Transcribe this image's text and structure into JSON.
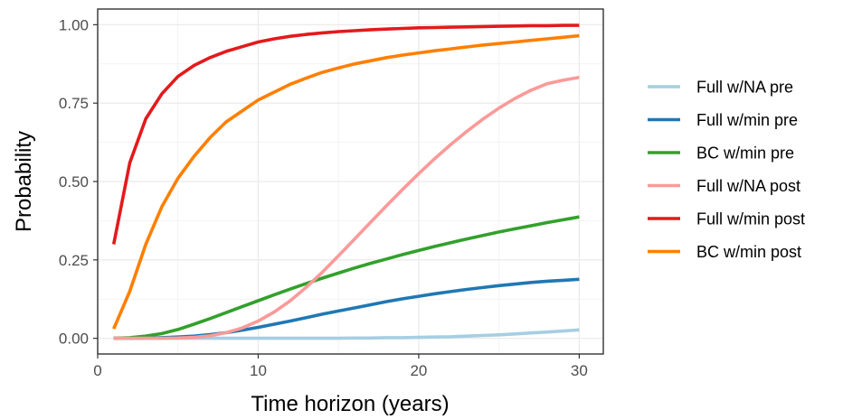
{
  "chart_data": {
    "type": "line",
    "title": "",
    "xlabel": "Time horizon (years)",
    "ylabel": "Probability",
    "xlim": [
      0,
      31.5
    ],
    "ylim": [
      -0.05,
      1.05
    ],
    "xticks": [
      0,
      10,
      20,
      30
    ],
    "xtick_labels": [
      "0",
      "10",
      "20",
      "30"
    ],
    "yticks": [
      0,
      0.25,
      0.5,
      0.75,
      1.0
    ],
    "ytick_labels": [
      "0.00",
      "0.25",
      "0.50",
      "0.75",
      "1.00"
    ],
    "grid": true,
    "legend_position": "right",
    "x": [
      1,
      2,
      3,
      4,
      5,
      6,
      7,
      8,
      9,
      10,
      11,
      12,
      13,
      14,
      15,
      16,
      17,
      18,
      19,
      20,
      21,
      22,
      23,
      24,
      25,
      26,
      27,
      28,
      29,
      30
    ],
    "series": [
      {
        "name": "Full w/NA pre",
        "color": "#a6cee3",
        "values": [
          0,
          0,
          0,
          0,
          0,
          0,
          0,
          0,
          0,
          0,
          0,
          0,
          0,
          0,
          0,
          0.001,
          0.001,
          0.002,
          0.002,
          0.003,
          0.004,
          0.005,
          0.007,
          0.009,
          0.011,
          0.014,
          0.017,
          0.02,
          0.023,
          0.027
        ]
      },
      {
        "name": "Full w/min pre",
        "color": "#1f78b4",
        "values": [
          0,
          0,
          0.001,
          0.002,
          0.004,
          0.007,
          0.012,
          0.018,
          0.026,
          0.035,
          0.045,
          0.055,
          0.066,
          0.077,
          0.087,
          0.097,
          0.107,
          0.117,
          0.126,
          0.134,
          0.142,
          0.149,
          0.156,
          0.162,
          0.168,
          0.173,
          0.178,
          0.182,
          0.185,
          0.188
        ]
      },
      {
        "name": "BC w/min pre",
        "color": "#33a02c",
        "values": [
          0,
          0.002,
          0.007,
          0.015,
          0.028,
          0.045,
          0.063,
          0.082,
          0.101,
          0.12,
          0.139,
          0.157,
          0.175,
          0.192,
          0.208,
          0.224,
          0.239,
          0.253,
          0.267,
          0.28,
          0.293,
          0.305,
          0.317,
          0.328,
          0.339,
          0.349,
          0.359,
          0.369,
          0.378,
          0.387
        ]
      },
      {
        "name": "Full w/NA post",
        "color": "#fb9a99",
        "values": [
          0,
          0,
          0,
          0,
          0.001,
          0.003,
          0.008,
          0.018,
          0.033,
          0.055,
          0.084,
          0.12,
          0.163,
          0.211,
          0.263,
          0.316,
          0.37,
          0.423,
          0.475,
          0.525,
          0.573,
          0.618,
          0.66,
          0.699,
          0.734,
          0.765,
          0.791,
          0.812,
          0.823,
          0.832
        ]
      },
      {
        "name": "Full w/min post",
        "color": "#e31a1c",
        "values": [
          0.3,
          0.56,
          0.7,
          0.78,
          0.835,
          0.87,
          0.895,
          0.915,
          0.93,
          0.945,
          0.955,
          0.963,
          0.969,
          0.974,
          0.978,
          0.981,
          0.984,
          0.986,
          0.988,
          0.99,
          0.991,
          0.992,
          0.993,
          0.994,
          0.995,
          0.996,
          0.997,
          0.997,
          0.998,
          0.998
        ]
      },
      {
        "name": "BC w/min post",
        "color": "#ff7f00",
        "values": [
          0.03,
          0.15,
          0.3,
          0.42,
          0.51,
          0.58,
          0.64,
          0.69,
          0.725,
          0.76,
          0.785,
          0.81,
          0.83,
          0.848,
          0.862,
          0.875,
          0.885,
          0.895,
          0.903,
          0.91,
          0.917,
          0.923,
          0.929,
          0.935,
          0.94,
          0.945,
          0.95,
          0.955,
          0.96,
          0.965
        ]
      }
    ]
  }
}
